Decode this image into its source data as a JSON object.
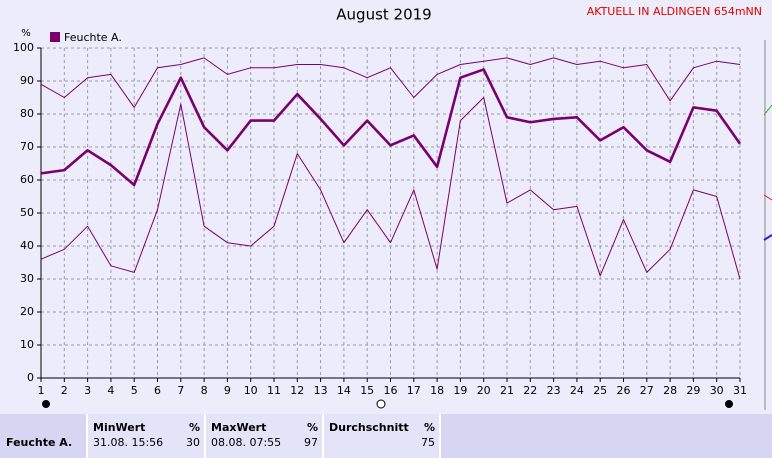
{
  "chart_data": {
    "type": "line",
    "title": "August 2019",
    "subtitle": "AKTUELL IN ALDINGEN 654mNN",
    "y_label": "%",
    "x": [
      1,
      2,
      3,
      4,
      5,
      6,
      7,
      8,
      9,
      10,
      11,
      12,
      13,
      14,
      15,
      16,
      17,
      18,
      19,
      20,
      21,
      22,
      23,
      24,
      25,
      26,
      27,
      28,
      29,
      30,
      31
    ],
    "xlim": [
      1,
      31
    ],
    "xticks": [
      1,
      2,
      3,
      4,
      5,
      6,
      7,
      8,
      9,
      10,
      11,
      12,
      13,
      14,
      15,
      16,
      17,
      18,
      19,
      20,
      21,
      22,
      23,
      24,
      25,
      26,
      27,
      28,
      29,
      30,
      31
    ],
    "ylim": [
      0,
      100
    ],
    "yticks": [
      0,
      10,
      20,
      30,
      40,
      50,
      60,
      70,
      80,
      90,
      100
    ],
    "grid": true,
    "series": [
      {
        "name": "Feuchte A.",
        "color": "#7a0070",
        "values": [
          62,
          63,
          69,
          64.5,
          58.5,
          77,
          91,
          76,
          69,
          78,
          78,
          86,
          78.5,
          70.5,
          78,
          70.5,
          73.5,
          64,
          91,
          93.5,
          79,
          77.5,
          78.5,
          79,
          72,
          76,
          69,
          65.5,
          82,
          81,
          71
        ]
      },
      {
        "color": "#7a0070",
        "values": [
          89,
          85,
          91,
          92,
          82,
          94,
          95,
          97,
          92,
          94,
          94,
          95,
          95,
          94,
          91,
          94,
          85,
          92,
          95,
          96,
          97,
          95,
          97,
          95,
          96,
          94,
          95,
          84,
          94,
          96,
          95
        ]
      },
      {
        "color": "#7a0070",
        "values": [
          36,
          39,
          46,
          34,
          32,
          51,
          83,
          46,
          41,
          40,
          46,
          68,
          57,
          41,
          51,
          41,
          57,
          33,
          78,
          85,
          53,
          57,
          51,
          52,
          31,
          48,
          32,
          39,
          57,
          55,
          30
        ]
      }
    ]
  },
  "table": {
    "row_label": "Feuchte A.",
    "columns": [
      {
        "header": "MinWert",
        "unit": "%",
        "time": "31.08. 15:56",
        "value": 30
      },
      {
        "header": "MaxWert",
        "unit": "%",
        "time": "08.08. 07:55",
        "value": 97
      },
      {
        "header": "Durchschnitt",
        "unit": "%",
        "value": 75
      }
    ]
  }
}
